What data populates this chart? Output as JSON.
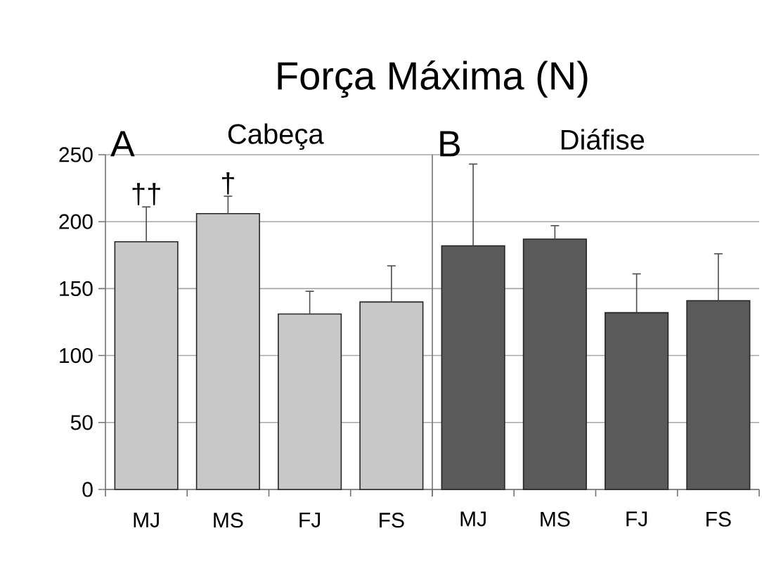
{
  "chart_data": [
    {
      "type": "bar",
      "title": "Força Máxima (N)",
      "subtitle": "Cabeça",
      "categories": [
        "MJ",
        "MS",
        "FJ",
        "FS"
      ],
      "values": [
        185,
        206,
        131,
        140
      ],
      "errors": [
        26,
        13,
        17,
        27
      ],
      "color": "#c8c8c8",
      "ylim": [
        0,
        250
      ],
      "yticks": [
        0,
        50,
        100,
        150,
        200,
        250
      ],
      "grid": "y",
      "annotations": [
        "A",
        {
          "text": "††",
          "x": "MJ",
          "y": 211
        },
        {
          "text": "†",
          "x": "MS",
          "y": 219
        }
      ]
    },
    {
      "type": "bar",
      "subtitle": "Diáfise",
      "categories": [
        "MJ",
        "MS",
        "FJ",
        "FS"
      ],
      "values": [
        182,
        187,
        132,
        141
      ],
      "errors": [
        61,
        10,
        29,
        35
      ],
      "color": "#5a5a5a",
      "ylim": [
        0,
        250
      ],
      "yticks": [
        0,
        50,
        100,
        150,
        200,
        250
      ],
      "grid": "y",
      "tick_labels": "x",
      "annotations": [
        "B"
      ]
    }
  ]
}
